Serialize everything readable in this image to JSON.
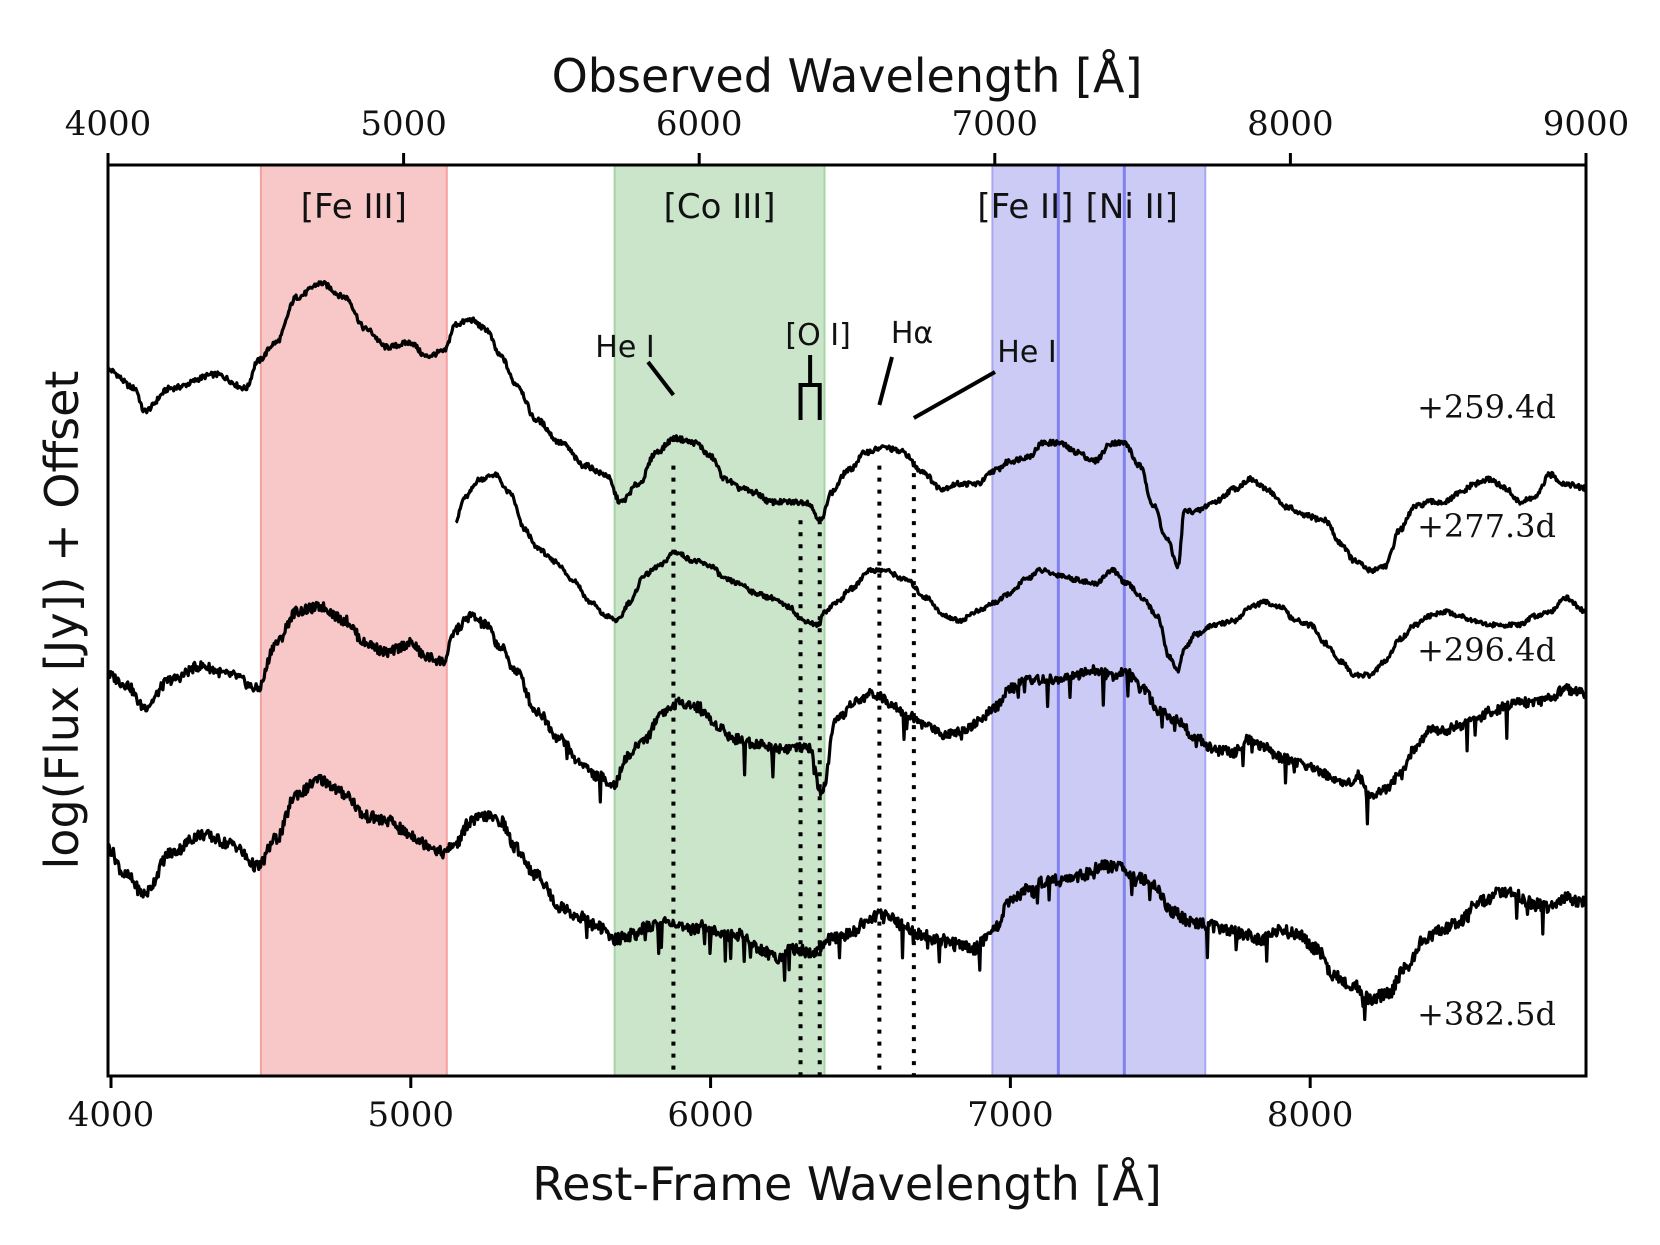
{
  "chart_data": {
    "type": "line",
    "title": "",
    "xlabel": "Rest-Frame Wavelength [Å]",
    "xlabel_top": "Observed Wavelength [Å]",
    "ylabel": "log(Flux [Jy]) + Offset",
    "xlim": [
      3990,
      8920
    ],
    "xlim_top": [
      4000,
      9000
    ],
    "xticks": [
      4000,
      5000,
      6000,
      7000,
      8000
    ],
    "xtick_labels": [
      "4000",
      "5000",
      "6000",
      "7000",
      "8000"
    ],
    "xticks_top": [
      4000,
      5000,
      6000,
      7000,
      8000,
      9000
    ],
    "xtick_labels_top": [
      "4000",
      "5000",
      "6000",
      "7000",
      "8000",
      "9000"
    ],
    "ylim": [
      0,
      10
    ],
    "bands": [
      {
        "label": "[Fe III]",
        "from": 4500,
        "to": 5120,
        "color": "#f4a1a1"
      },
      {
        "label": "[Co III]",
        "from": 5680,
        "to": 6380,
        "color": "#a6d4a6"
      },
      {
        "label": "[Fe II]",
        "from": 6940,
        "to": 7160,
        "color": "#a8a8f0"
      },
      {
        "label": "[Ni II]",
        "from": 7160,
        "to": 7650,
        "color": "#a8a8f0"
      }
    ],
    "band_edges": [
      7160,
      7380
    ],
    "lines": [
      {
        "label": "He I",
        "wavelength": 5876
      },
      {
        "label": "[O I]",
        "wavelength": [
          6300,
          6364
        ]
      },
      {
        "label": "Hα",
        "wavelength": 6563
      },
      {
        "label": "He I",
        "wavelength": 6678
      }
    ],
    "series": [
      {
        "name": "+259.4d",
        "x": [
          3990,
          4080,
          4110,
          4200,
          4350,
          4450,
          4490,
          4550,
          4620,
          4700,
          4780,
          4850,
          4920,
          5000,
          5050,
          5110,
          5150,
          5200,
          5250,
          5300,
          5350,
          5420,
          5500,
          5580,
          5650,
          5700,
          5760,
          5820,
          5880,
          5950,
          6000,
          6050,
          6100,
          6150,
          6200,
          6260,
          6320,
          6370,
          6400,
          6460,
          6520,
          6580,
          6640,
          6700,
          6770,
          6830,
          6890,
          6950,
          7000,
          7060,
          7110,
          7160,
          7220,
          7280,
          7340,
          7380,
          7430,
          7480,
          7520,
          7560,
          7580,
          7620,
          7680,
          7750,
          7800,
          7850,
          7920,
          7980,
          8050,
          8100,
          8150,
          8200,
          8250,
          8300,
          8350,
          8400,
          8450,
          8500,
          8550,
          8600,
          8650,
          8700,
          8750,
          8800,
          8850,
          8920
        ],
        "y": [
          7.75,
          7.55,
          7.3,
          7.55,
          7.7,
          7.55,
          7.85,
          8.05,
          8.55,
          8.7,
          8.55,
          8.2,
          8.0,
          8.05,
          7.9,
          7.95,
          8.25,
          8.3,
          8.2,
          7.9,
          7.6,
          7.2,
          6.95,
          6.7,
          6.6,
          6.3,
          6.5,
          6.85,
          7.0,
          6.95,
          6.8,
          6.55,
          6.45,
          6.4,
          6.3,
          6.3,
          6.3,
          6.1,
          6.4,
          6.65,
          6.85,
          6.9,
          6.85,
          6.65,
          6.45,
          6.5,
          6.5,
          6.65,
          6.75,
          6.8,
          6.95,
          6.95,
          6.85,
          6.75,
          6.95,
          6.95,
          6.7,
          6.25,
          5.9,
          5.6,
          6.2,
          6.2,
          6.3,
          6.45,
          6.55,
          6.45,
          6.25,
          6.15,
          6.1,
          5.85,
          5.65,
          5.55,
          5.6,
          6.0,
          6.25,
          6.3,
          6.3,
          6.4,
          6.5,
          6.55,
          6.45,
          6.3,
          6.35,
          6.6,
          6.5,
          6.45
        ]
      },
      {
        "name": "+277.3d",
        "x": [
          5150,
          5180,
          5230,
          5280,
          5330,
          5380,
          5420,
          5480,
          5540,
          5600,
          5650,
          5690,
          5730,
          5780,
          5830,
          5880,
          5950,
          6000,
          6050,
          6100,
          6150,
          6200,
          6260,
          6310,
          6360,
          6380,
          6420,
          6470,
          6530,
          6580,
          6650,
          6720,
          6780,
          6830,
          6890,
          6950,
          7000,
          7050,
          7100,
          7160,
          7220,
          7280,
          7340,
          7390,
          7440,
          7490,
          7530,
          7560,
          7580,
          7620,
          7680,
          7750,
          7800,
          7850,
          7900,
          7950,
          8000,
          8050,
          8100,
          8150,
          8200,
          8250,
          8300,
          8350,
          8400,
          8450,
          8500,
          8550,
          8600,
          8650,
          8700,
          8750,
          8800,
          8850,
          8920
        ],
        "y": [
          6.1,
          6.35,
          6.55,
          6.6,
          6.4,
          6.0,
          5.8,
          5.65,
          5.45,
          5.2,
          5.05,
          5.0,
          5.2,
          5.5,
          5.6,
          5.75,
          5.65,
          5.6,
          5.45,
          5.4,
          5.3,
          5.25,
          5.15,
          5.0,
          4.95,
          5.1,
          5.2,
          5.35,
          5.55,
          5.55,
          5.45,
          5.25,
          5.05,
          5.0,
          5.1,
          5.2,
          5.3,
          5.45,
          5.55,
          5.5,
          5.45,
          5.4,
          5.55,
          5.4,
          5.25,
          5.05,
          4.6,
          4.45,
          4.7,
          4.85,
          4.95,
          5.0,
          5.15,
          5.2,
          5.15,
          5.0,
          4.95,
          4.75,
          4.55,
          4.4,
          4.4,
          4.55,
          4.8,
          4.95,
          5.05,
          5.1,
          5.05,
          5.0,
          4.95,
          4.95,
          4.95,
          5.05,
          5.1,
          5.25,
          5.1
        ]
      },
      {
        "name": "+296.4d",
        "x": [
          3990,
          4050,
          4110,
          4200,
          4300,
          4400,
          4490,
          4550,
          4620,
          4700,
          4780,
          4850,
          4920,
          5000,
          5050,
          5110,
          5150,
          5200,
          5250,
          5300,
          5350,
          5420,
          5500,
          5560,
          5620,
          5680,
          5720,
          5780,
          5840,
          5900,
          5960,
          6020,
          6080,
          6150,
          6220,
          6280,
          6330,
          6370,
          6420,
          6480,
          6540,
          6600,
          6660,
          6720,
          6780,
          6840,
          6900,
          6950,
          7000,
          7050,
          7100,
          7160,
          7220,
          7280,
          7340,
          7380,
          7440,
          7500,
          7560,
          7620,
          7680,
          7740,
          7800,
          7850,
          7900,
          7950,
          8000,
          8060,
          8120,
          8160,
          8200,
          8250,
          8300,
          8350,
          8400,
          8450,
          8500,
          8550,
          8600,
          8650,
          8700,
          8750,
          8800,
          8850,
          8920
        ],
        "y": [
          4.4,
          4.3,
          4.05,
          4.35,
          4.5,
          4.4,
          4.25,
          4.75,
          5.1,
          5.15,
          5.0,
          4.75,
          4.65,
          4.75,
          4.6,
          4.55,
          4.9,
          5.05,
          4.95,
          4.7,
          4.45,
          4.0,
          3.7,
          3.45,
          3.3,
          3.2,
          3.5,
          3.7,
          4.0,
          4.1,
          4.05,
          3.85,
          3.7,
          3.65,
          3.6,
          3.6,
          3.6,
          3.1,
          3.9,
          4.1,
          4.2,
          4.1,
          3.95,
          3.85,
          3.75,
          3.8,
          3.9,
          4.05,
          4.25,
          4.35,
          4.35,
          4.35,
          4.4,
          4.45,
          4.4,
          4.45,
          4.25,
          4.0,
          3.9,
          3.7,
          3.6,
          3.55,
          3.7,
          3.6,
          3.5,
          3.45,
          3.4,
          3.3,
          3.2,
          3.3,
          3.05,
          3.15,
          3.3,
          3.6,
          3.8,
          3.8,
          3.85,
          3.9,
          4.0,
          4.05,
          4.1,
          4.1,
          4.15,
          4.25,
          4.2
        ]
      },
      {
        "name": "+382.5d",
        "x": [
          3990,
          4050,
          4110,
          4200,
          4300,
          4400,
          4490,
          4550,
          4620,
          4700,
          4780,
          4850,
          4920,
          5000,
          5050,
          5110,
          5150,
          5200,
          5250,
          5300,
          5350,
          5420,
          5500,
          5560,
          5620,
          5680,
          5740,
          5800,
          5860,
          5920,
          5980,
          6040,
          6100,
          6160,
          6220,
          6280,
          6340,
          6400,
          6460,
          6520,
          6580,
          6640,
          6700,
          6760,
          6820,
          6880,
          6940,
          7000,
          7060,
          7120,
          7180,
          7240,
          7300,
          7360,
          7420,
          7480,
          7540,
          7600,
          7660,
          7720,
          7780,
          7840,
          7900,
          7960,
          8020,
          8080,
          8140,
          8200,
          8260,
          8320,
          8380,
          8440,
          8500,
          8560,
          8620,
          8680,
          8740,
          8800,
          8860,
          8920
        ],
        "y": [
          2.5,
          2.2,
          2.0,
          2.45,
          2.65,
          2.55,
          2.3,
          2.6,
          3.1,
          3.25,
          3.1,
          2.85,
          2.8,
          2.65,
          2.55,
          2.45,
          2.55,
          2.8,
          2.85,
          2.8,
          2.5,
          2.2,
          1.85,
          1.75,
          1.65,
          1.5,
          1.55,
          1.65,
          1.7,
          1.6,
          1.65,
          1.55,
          1.55,
          1.4,
          1.3,
          1.4,
          1.35,
          1.5,
          1.55,
          1.7,
          1.8,
          1.65,
          1.55,
          1.5,
          1.45,
          1.4,
          1.6,
          1.9,
          2.05,
          2.15,
          2.15,
          2.2,
          2.3,
          2.3,
          2.2,
          2.1,
          1.8,
          1.7,
          1.65,
          1.6,
          1.55,
          1.5,
          1.6,
          1.55,
          1.4,
          1.1,
          1.0,
          0.85,
          0.9,
          1.2,
          1.5,
          1.6,
          1.7,
          1.9,
          2.0,
          2.0,
          1.9,
          1.85,
          1.95,
          1.9
        ]
      }
    ],
    "epoch_labels": [
      "+259.4d",
      "+277.3d",
      "+296.4d",
      "+382.5d"
    ]
  },
  "colors": {
    "spectrum": "#000000",
    "fe3_band": "#f4a1a1",
    "co3_band": "#a6d4a6",
    "ni_band": "#a8a8f0",
    "band_edge_blue": "#8080ee"
  }
}
